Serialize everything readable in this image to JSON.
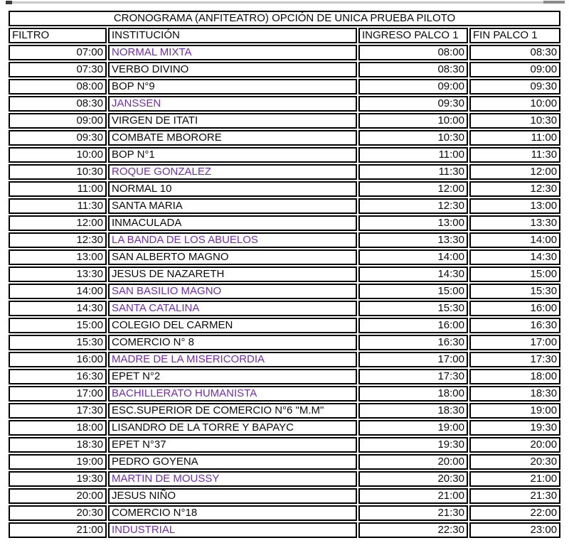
{
  "title": "CRONOGRAMA (ANFITEATRO) OPCIÓN DE UNICA PRUEBA PILOTO",
  "columns": [
    "FILTRO",
    "INSTITUCIÓN",
    "INGRESO PALCO 1",
    "FIN PALCO 1"
  ],
  "colors": {
    "highlight_purple": "#7030A0",
    "border_black": "#000000",
    "background": "#FFFFFF"
  },
  "rows": [
    {
      "filtro": "07:00",
      "institucion": "NORMAL MIXTA",
      "ingreso": "08:00",
      "fin": "08:30",
      "purple": true
    },
    {
      "filtro": "07:30",
      "institucion": "VERBO DIVINO",
      "ingreso": "08:30",
      "fin": "09:00",
      "purple": false
    },
    {
      "filtro": "08:00",
      "institucion": "BOP N°9",
      "ingreso": "09:00",
      "fin": "09:30",
      "purple": false
    },
    {
      "filtro": "08:30",
      "institucion": "JANSSEN",
      "ingreso": "09:30",
      "fin": "10:00",
      "purple": true
    },
    {
      "filtro": "09:00",
      "institucion": "VIRGEN DE ITATI",
      "ingreso": "10:00",
      "fin": "10:30",
      "purple": false
    },
    {
      "filtro": "09:30",
      "institucion": "COMBATE MBORORE",
      "ingreso": "10:30",
      "fin": "11:00",
      "purple": false
    },
    {
      "filtro": "10:00",
      "institucion": "BOP N°1",
      "ingreso": "11:00",
      "fin": "11:30",
      "purple": false
    },
    {
      "filtro": "10:30",
      "institucion": "ROQUE GONZALEZ",
      "ingreso": "11:30",
      "fin": "12:00",
      "purple": true
    },
    {
      "filtro": "11:00",
      "institucion": "NORMAL 10",
      "ingreso": "12:00",
      "fin": "12:30",
      "purple": false
    },
    {
      "filtro": "11:30",
      "institucion": "SANTA MARIA",
      "ingreso": "12:30",
      "fin": "13:00",
      "purple": false
    },
    {
      "filtro": "12:00",
      "institucion": "INMACULADA",
      "ingreso": "13:00",
      "fin": "13:30",
      "purple": false
    },
    {
      "filtro": "12:30",
      "institucion": "LA BANDA DE LOS ABUELOS",
      "ingreso": "13:30",
      "fin": "14:00",
      "purple": true
    },
    {
      "filtro": "13:00",
      "institucion": "SAN ALBERTO MAGNO",
      "ingreso": "14:00",
      "fin": "14:30",
      "purple": false
    },
    {
      "filtro": "13:30",
      "institucion": "JESUS DE NAZARETH",
      "ingreso": "14:30",
      "fin": "15:00",
      "purple": false
    },
    {
      "filtro": "14:00",
      "institucion": "SAN BASILIO MAGNO",
      "ingreso": "15:00",
      "fin": "15:30",
      "purple": true
    },
    {
      "filtro": "14:30",
      "institucion": "SANTA CATALINA",
      "ingreso": "15:30",
      "fin": "16:00",
      "purple": true
    },
    {
      "filtro": "15:00",
      "institucion": "COLEGIO DEL CARMEN",
      "ingreso": "16:00",
      "fin": "16:30",
      "purple": false
    },
    {
      "filtro": "15:30",
      "institucion": "COMERCIO N° 8",
      "ingreso": "16:30",
      "fin": "17:00",
      "purple": false
    },
    {
      "filtro": "16:00",
      "institucion": "MADRE DE LA MISERICORDIA",
      "ingreso": "17:00",
      "fin": "17:30",
      "purple": true
    },
    {
      "filtro": "16:30",
      "institucion": "EPET N°2",
      "ingreso": "17:30",
      "fin": "18:00",
      "purple": false
    },
    {
      "filtro": "17:00",
      "institucion": "BACHILLERATO HUMANISTA",
      "ingreso": "18:00",
      "fin": "18:30",
      "purple": true
    },
    {
      "filtro": "17:30",
      "institucion": "ESC.SUPERIOR DE COMERCIO N°6 \"M.M\"",
      "ingreso": "18:30",
      "fin": "19:00",
      "purple": false
    },
    {
      "filtro": "18:00",
      "institucion": "LISANDRO DE LA TORRE Y BAPAYC",
      "ingreso": "19:00",
      "fin": "19:30",
      "purple": false
    },
    {
      "filtro": "18:30",
      "institucion": "EPET N°37",
      "ingreso": "19:30",
      "fin": "20:00",
      "purple": false
    },
    {
      "filtro": "19:00",
      "institucion": "PEDRO GOYENA",
      "ingreso": "20:00",
      "fin": "20:30",
      "purple": false
    },
    {
      "filtro": "19:30",
      "institucion": "MARTIN DE MOUSSY",
      "ingreso": "20:30",
      "fin": "21:00",
      "purple": true
    },
    {
      "filtro": "20:00",
      "institucion": "JESUS NIÑO",
      "ingreso": "21:00",
      "fin": "21:30",
      "purple": false
    },
    {
      "filtro": "20:30",
      "institucion": "COMERCIO N°18",
      "ingreso": "21:30",
      "fin": "22:00",
      "purple": false
    },
    {
      "filtro": "21:00",
      "institucion": "INDUSTRIAL",
      "ingreso": "22:30",
      "fin": "23:00",
      "purple": true
    }
  ]
}
